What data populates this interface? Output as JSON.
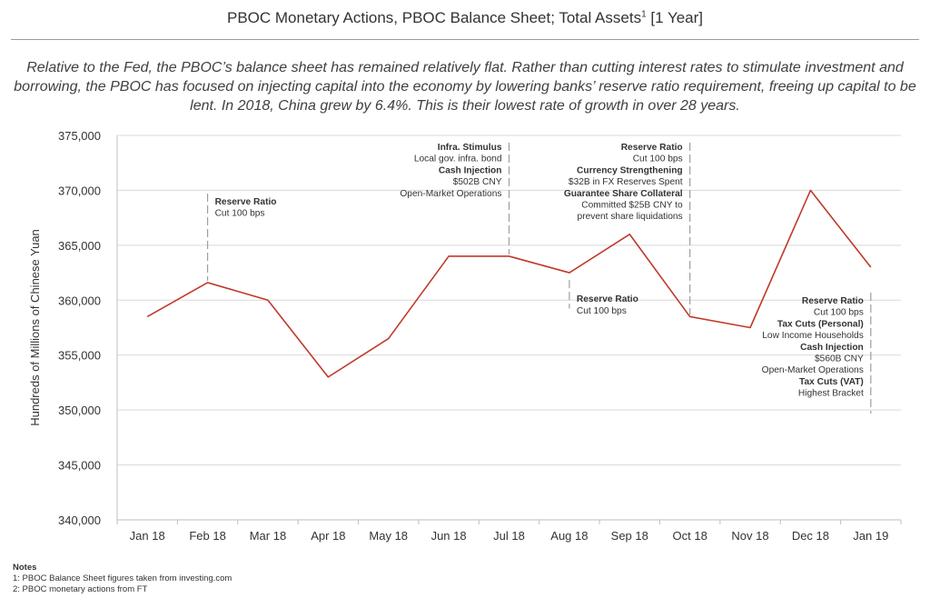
{
  "title": "PBOC Monetary Actions, PBOC Balance Sheet; Total Assets",
  "title_sup": "1",
  "title_suffix": " [1 Year]",
  "subtitle": "Relative to the Fed, the PBOC’s balance sheet has remained relatively flat. Rather than cutting interest rates to stimulate investment and borrowing, the PBOC has focused on injecting capital into the economy by lowering banks’ reserve ratio requirement, freeing up capital to be lent. In 2018, China grew by 6.4%. This is their lowest rate of growth in over 28 years.",
  "notes": {
    "heading": "Notes",
    "lines": [
      "1: PBOC Balance Sheet figures taken from investing.com",
      "2: PBOC monetary actions from FT"
    ]
  },
  "colors": {
    "line": "#c0392b",
    "grid": "#d9d9d9",
    "text": "#333333",
    "marker": "#9e9e9e"
  },
  "chart_data": {
    "type": "line",
    "categories": [
      "Jan 18",
      "Feb 18",
      "Mar 18",
      "Apr 18",
      "May 18",
      "Jun 18",
      "Jul 18",
      "Aug 18",
      "Sep 18",
      "Oct 18",
      "Nov 18",
      "Dec 18",
      "Jan 19"
    ],
    "series": [
      {
        "values": [
          358500,
          361600,
          360000,
          353000,
          356500,
          364000,
          364000,
          362500,
          366000,
          358500,
          357500,
          370000,
          363000
        ]
      }
    ],
    "ylabel": "Hundreds of Millions of Chinese Yuan",
    "xlabel": "",
    "ylim": [
      340000,
      375000
    ],
    "yticks": [
      340000,
      345000,
      350000,
      355000,
      360000,
      365000,
      370000,
      375000
    ],
    "ytick_labels": [
      "340,000",
      "345,000",
      "350,000",
      "355,000",
      "360,000",
      "365,000",
      "370,000",
      "375,000"
    ],
    "grid": true,
    "annotations": [
      {
        "x": "Feb 18",
        "align": "left",
        "lines": [
          [
            "Reserve Ratio",
            "bold"
          ],
          [
            "Cut 100 bps",
            "normal"
          ]
        ]
      },
      {
        "x": "Jul 18",
        "align": "right",
        "lines": [
          [
            "Infra. Stimulus",
            "bold"
          ],
          [
            "Local gov. infra. bond",
            "normal"
          ],
          [
            "Cash Injection",
            "bold"
          ],
          [
            "$502B CNY",
            "normal"
          ],
          [
            "Open-Market Operations",
            "normal"
          ]
        ]
      },
      {
        "x": "Aug 18",
        "align": "left",
        "lines": [
          [
            "Reserve Ratio",
            "bold"
          ],
          [
            "Cut 100 bps",
            "normal"
          ]
        ]
      },
      {
        "x": "Oct 18",
        "align": "right",
        "lines": [
          [
            "Reserve Ratio",
            "bold"
          ],
          [
            "Cut 100 bps",
            "normal"
          ],
          [
            "Currency Strengthening",
            "bold"
          ],
          [
            "$32B in FX Reserves Spent",
            "normal"
          ],
          [
            "Guarantee Share Collateral",
            "bold"
          ],
          [
            "Committed $25B CNY to",
            "normal"
          ],
          [
            "prevent share liquidations",
            "normal"
          ]
        ]
      },
      {
        "x": "Jan 19",
        "align": "right",
        "lines": [
          [
            "Reserve Ratio",
            "bold"
          ],
          [
            "Cut 100 bps",
            "normal"
          ],
          [
            "Tax Cuts (Personal)",
            "bold"
          ],
          [
            "Low Income Households",
            "normal"
          ],
          [
            "Cash Injection",
            "bold"
          ],
          [
            "$560B CNY",
            "normal"
          ],
          [
            "Open-Market Operations",
            "normal"
          ],
          [
            "Tax Cuts (VAT)",
            "bold"
          ],
          [
            "Highest Bracket",
            "normal"
          ]
        ]
      }
    ]
  }
}
